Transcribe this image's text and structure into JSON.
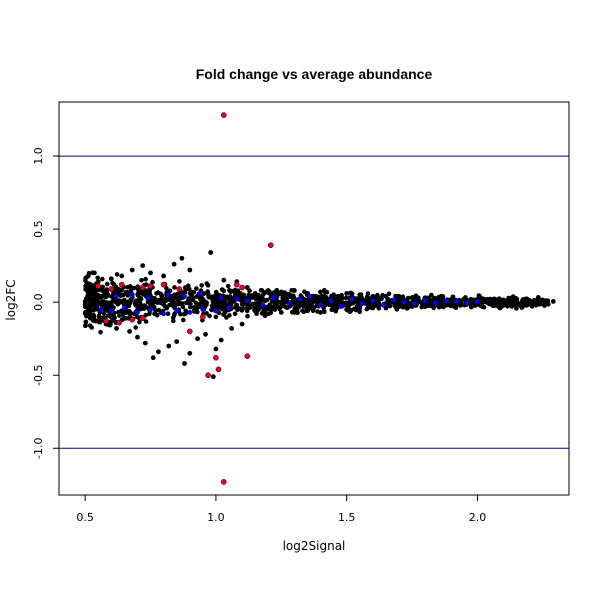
{
  "chart_data": {
    "type": "scatter",
    "title": "Fold change vs average abundance",
    "xlabel": "log2Signal",
    "ylabel": "log2FC",
    "xlim": [
      0.4,
      2.35
    ],
    "ylim": [
      -1.32,
      1.37
    ],
    "x_ticks": [
      0.5,
      1.0,
      1.5,
      2.0
    ],
    "x_tick_labels": [
      "0.5",
      "1.0",
      "1.5",
      "2.0"
    ],
    "y_ticks": [
      -1.0,
      -0.5,
      0.0,
      0.5,
      1.0
    ],
    "y_tick_labels": [
      "-1.0",
      "-0.5",
      "0.0",
      "0.5",
      "1.0"
    ],
    "hlines": [
      1.0,
      -1.0
    ],
    "hline_color": "#00008B",
    "grid": false,
    "colors": {
      "background": "#000000",
      "blue": "#0000FF",
      "red": "#E8002A"
    },
    "series": [
      {
        "color": "#000000",
        "points": [
          [
            0.52,
            0.12
          ],
          [
            0.55,
            0.14
          ],
          [
            0.6,
            0.16
          ],
          [
            0.64,
            0.18
          ],
          [
            0.68,
            0.22
          ],
          [
            0.72,
            0.25
          ],
          [
            0.75,
            0.2
          ],
          [
            0.8,
            0.18
          ],
          [
            0.84,
            0.26
          ],
          [
            0.87,
            0.3
          ],
          [
            0.9,
            0.22
          ],
          [
            0.98,
            0.34
          ],
          [
            1.03,
            0.15
          ],
          [
            1.08,
            0.14
          ],
          [
            1.12,
            0.1
          ],
          [
            0.54,
            -0.13
          ],
          [
            0.58,
            -0.15
          ],
          [
            0.62,
            -0.18
          ],
          [
            0.67,
            -0.2
          ],
          [
            0.7,
            -0.24
          ],
          [
            0.73,
            -0.28
          ],
          [
            0.76,
            -0.38
          ],
          [
            0.78,
            -0.34
          ],
          [
            0.82,
            -0.3
          ],
          [
            0.85,
            -0.27
          ],
          [
            0.88,
            -0.42
          ],
          [
            0.9,
            -0.35
          ],
          [
            0.93,
            -0.25
          ],
          [
            0.96,
            -0.22
          ],
          [
            0.99,
            -0.51
          ],
          [
            1.0,
            -0.32
          ],
          [
            1.02,
            -0.26
          ],
          [
            1.06,
            -0.18
          ],
          [
            1.1,
            -0.15
          ],
          [
            1.15,
            0.06
          ],
          [
            1.2,
            0.08
          ],
          [
            1.25,
            0.07
          ],
          [
            1.3,
            0.08
          ],
          [
            1.35,
            0.06
          ],
          [
            1.4,
            0.07
          ],
          [
            1.45,
            0.05
          ],
          [
            1.5,
            0.06
          ],
          [
            1.55,
            0.05
          ],
          [
            1.6,
            0.04
          ],
          [
            1.65,
            0.04
          ],
          [
            1.7,
            0.04
          ],
          [
            1.75,
            0.03
          ],
          [
            1.8,
            0.03
          ],
          [
            1.85,
            0.03
          ],
          [
            1.9,
            0.02
          ],
          [
            1.95,
            0.02
          ],
          [
            2.0,
            0.02
          ],
          [
            2.05,
            0.02
          ],
          [
            2.1,
            0.015
          ],
          [
            2.15,
            0.012
          ],
          [
            2.2,
            0.01
          ],
          [
            2.25,
            0.008
          ],
          [
            2.29,
            0.005
          ],
          [
            1.15,
            -0.06
          ],
          [
            1.2,
            -0.08
          ],
          [
            1.25,
            -0.07
          ],
          [
            1.3,
            -0.07
          ],
          [
            1.35,
            -0.06
          ],
          [
            1.4,
            -0.07
          ],
          [
            1.45,
            -0.05
          ],
          [
            1.5,
            -0.05
          ],
          [
            1.55,
            -0.04
          ],
          [
            1.6,
            -0.04
          ],
          [
            1.65,
            -0.04
          ],
          [
            1.7,
            -0.03
          ],
          [
            1.75,
            -0.03
          ],
          [
            1.8,
            -0.03
          ],
          [
            1.85,
            -0.025
          ],
          [
            1.9,
            -0.02
          ],
          [
            1.95,
            -0.02
          ],
          [
            2.0,
            -0.015
          ],
          [
            2.05,
            -0.012
          ],
          [
            2.1,
            -0.01
          ],
          [
            2.15,
            -0.008
          ],
          [
            2.2,
            -0.005
          ],
          [
            2.24,
            -0.004
          ]
        ]
      },
      {
        "color": "#0000FF",
        "points": [
          [
            0.56,
            -0.05
          ],
          [
            0.6,
            -0.06
          ],
          [
            0.65,
            -0.04
          ],
          [
            0.7,
            -0.07
          ],
          [
            0.75,
            -0.05
          ],
          [
            0.8,
            -0.08
          ],
          [
            0.85,
            -0.06
          ],
          [
            0.9,
            -0.07
          ],
          [
            0.95,
            -0.05
          ],
          [
            1.0,
            -0.06
          ],
          [
            1.05,
            -0.04
          ],
          [
            0.62,
            0.04
          ],
          [
            0.68,
            0.05
          ],
          [
            0.74,
            0.03
          ],
          [
            0.82,
            0.05
          ],
          [
            0.88,
            0.04
          ],
          [
            0.94,
            0.06
          ],
          [
            1.02,
            0.03
          ],
          [
            1.08,
            0.02
          ],
          [
            1.12,
            0.01
          ],
          [
            1.18,
            -0.02
          ],
          [
            1.22,
            0.03
          ],
          [
            1.28,
            -0.01
          ],
          [
            1.32,
            0.02
          ],
          [
            1.36,
            0.04
          ],
          [
            1.4,
            -0.02
          ],
          [
            1.44,
            0.01
          ],
          [
            1.48,
            -0.03
          ],
          [
            1.52,
            0.02
          ],
          [
            1.56,
            -0.01
          ],
          [
            1.6,
            0.01
          ],
          [
            1.64,
            -0.02
          ],
          [
            1.68,
            0.015
          ],
          [
            1.72,
            0.0
          ],
          [
            1.76,
            -0.01
          ],
          [
            1.8,
            0.01
          ],
          [
            1.84,
            -0.005
          ],
          [
            1.88,
            0.008
          ],
          [
            1.92,
            0.004
          ],
          [
            1.96,
            -0.004
          ],
          [
            2.0,
            0.003
          ]
        ]
      },
      {
        "color": "#E8002A",
        "points": [
          [
            1.03,
            1.28
          ],
          [
            1.21,
            0.39
          ],
          [
            1.03,
            -1.23
          ],
          [
            0.97,
            -0.5
          ],
          [
            1.0,
            -0.38
          ],
          [
            1.01,
            -0.46
          ],
          [
            1.12,
            -0.37
          ],
          [
            0.9,
            -0.2
          ],
          [
            0.55,
            0.11
          ],
          [
            0.6,
            0.09
          ],
          [
            0.64,
            0.12
          ],
          [
            0.72,
            0.1
          ],
          [
            0.75,
            0.11
          ],
          [
            0.8,
            0.12
          ],
          [
            0.86,
            0.09
          ],
          [
            0.58,
            -0.13
          ],
          [
            0.63,
            -0.14
          ],
          [
            0.68,
            -0.12
          ],
          [
            0.72,
            -0.11
          ],
          [
            0.95,
            -0.1
          ],
          [
            1.08,
            0.12
          ],
          [
            1.1,
            0.1
          ]
        ]
      }
    ]
  }
}
